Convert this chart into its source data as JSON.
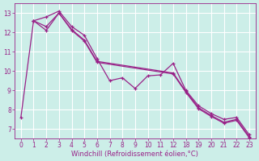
{
  "xlabel": "Windchill (Refroidissement éolien,°C)",
  "background_color": "#cceee8",
  "line_color": "#992288",
  "grid_color": "#ffffff",
  "ylim": [
    6.5,
    13.5
  ],
  "yticks": [
    7,
    8,
    9,
    10,
    11,
    12,
    13
  ],
  "xtick_labels": [
    "0",
    "1",
    "2",
    "3",
    "4",
    "5",
    "6",
    "7",
    "8",
    "9",
    "10",
    "11",
    "12",
    "18",
    "19",
    "20",
    "21",
    "22",
    "23"
  ],
  "series1_idx": [
    0,
    1,
    2,
    3,
    4,
    5,
    6,
    7,
    8,
    9,
    10,
    11,
    12,
    13,
    14,
    15,
    16,
    17,
    18
  ],
  "series1_y": [
    7.6,
    12.6,
    12.8,
    13.1,
    12.3,
    11.85,
    10.65,
    9.5,
    9.65,
    9.1,
    9.75,
    9.8,
    10.4,
    9.0,
    8.2,
    7.8,
    7.5,
    7.6,
    6.7
  ],
  "series2_idx": [
    1,
    2,
    3,
    4,
    5,
    6,
    12,
    13,
    14,
    15,
    16,
    17,
    18
  ],
  "series2_y": [
    12.6,
    12.3,
    13.0,
    12.15,
    11.6,
    10.5,
    9.9,
    8.95,
    8.1,
    7.7,
    7.35,
    7.5,
    6.6
  ],
  "series3_idx": [
    1,
    2,
    3,
    4,
    5,
    6,
    12,
    13,
    14,
    15,
    16,
    17,
    18
  ],
  "series3_y": [
    12.6,
    12.1,
    13.0,
    12.1,
    11.55,
    10.45,
    9.85,
    8.9,
    8.05,
    7.65,
    7.3,
    7.45,
    6.55
  ],
  "lw": 0.9,
  "markersize": 3,
  "tick_fontsize": 5.5,
  "xlabel_fontsize": 6
}
